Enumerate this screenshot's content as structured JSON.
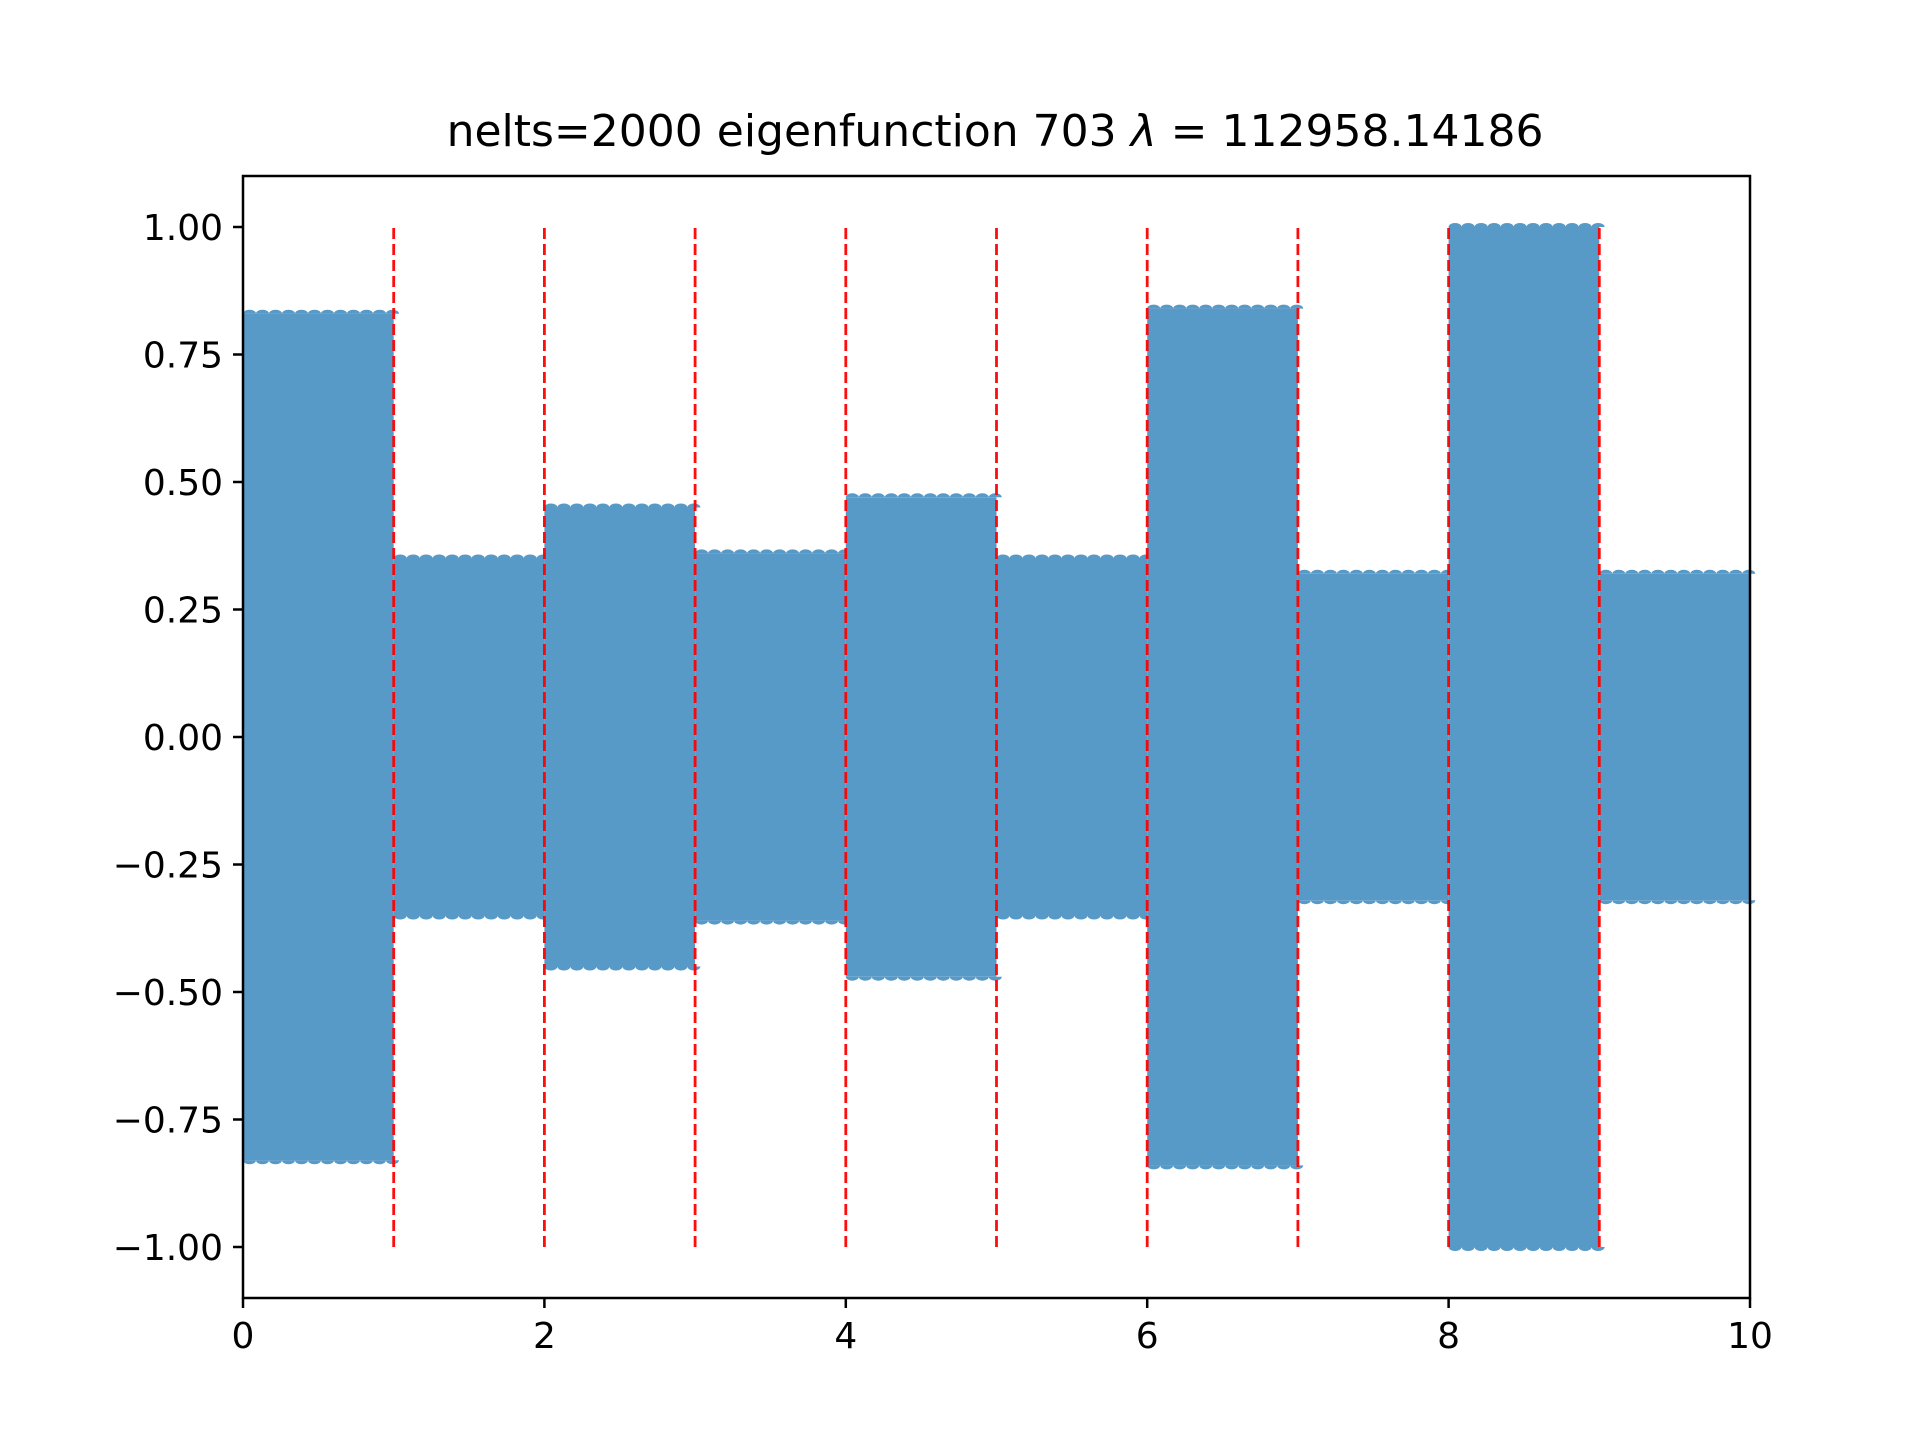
{
  "chart_data": {
    "type": "area",
    "title": {
      "prefix": "nelts=2000  eigenfunction 703  ",
      "lambda_symbol": "λ",
      "equals": " = ",
      "lambda_value": "112958.14186"
    },
    "xlabel": "",
    "ylabel": "",
    "xlim": [
      0,
      10
    ],
    "ylim": [
      -1.1,
      1.1
    ],
    "x_ticks": [
      0,
      2,
      4,
      6,
      8,
      10
    ],
    "x_tick_labels": [
      "0",
      "2",
      "4",
      "6",
      "8",
      "10"
    ],
    "y_ticks": [
      1.0,
      0.75,
      0.5,
      0.25,
      0.0,
      -0.25,
      -0.5,
      -0.75,
      -1.0
    ],
    "y_tick_labels": [
      "1.00",
      "0.75",
      "0.50",
      "0.25",
      "0.00",
      "−0.25",
      "−0.50",
      "−0.75",
      "−1.00"
    ],
    "grid": false,
    "series": [
      {
        "style": "dense oscillation (filled envelope)",
        "color": "#5799c7",
        "segments": [
          {
            "x_start": 0,
            "x_end": 1,
            "amplitude": 0.83
          },
          {
            "x_start": 1,
            "x_end": 2,
            "amplitude": 0.35
          },
          {
            "x_start": 2,
            "x_end": 3,
            "amplitude": 0.45
          },
          {
            "x_start": 3,
            "x_end": 4,
            "amplitude": 0.36
          },
          {
            "x_start": 4,
            "x_end": 5,
            "amplitude": 0.47
          },
          {
            "x_start": 5,
            "x_end": 6,
            "amplitude": 0.35
          },
          {
            "x_start": 6,
            "x_end": 7,
            "amplitude": 0.84
          },
          {
            "x_start": 7,
            "x_end": 8,
            "amplitude": 0.32
          },
          {
            "x_start": 8,
            "x_end": 9,
            "amplitude": 1.0
          },
          {
            "x_start": 9,
            "x_end": 10,
            "amplitude": 0.32
          }
        ]
      }
    ],
    "vertical_lines": {
      "x": [
        1,
        2,
        3,
        4,
        5,
        6,
        7,
        8,
        9
      ],
      "y_range": [
        -1.0,
        1.0
      ],
      "style": "dashed",
      "color": "#ff0000"
    }
  },
  "colors": {
    "fill": "#5799c7",
    "divider": "#ff0000",
    "axis": "#000000",
    "background": "#ffffff"
  }
}
